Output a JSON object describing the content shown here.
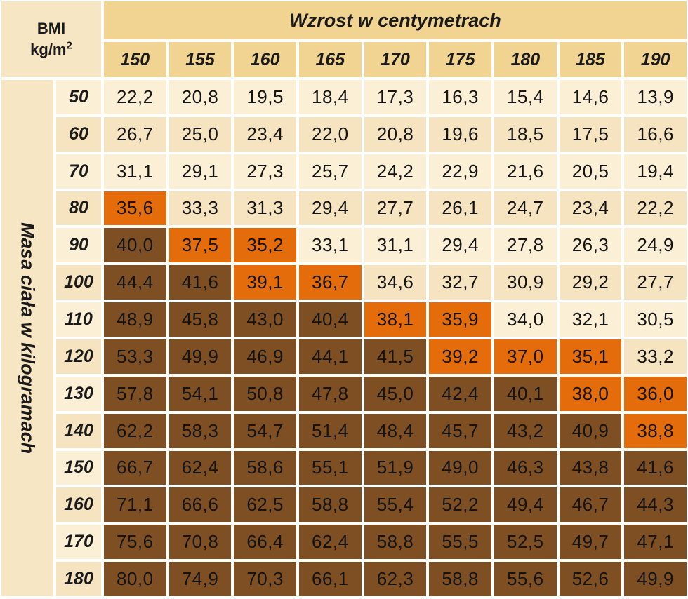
{
  "chart_data": {
    "type": "table",
    "corner_label_line1": "BMI",
    "corner_label_unit": "kg/m",
    "corner_label_exp": "2",
    "column_header_title": "Wzrost w centymetrach",
    "row_header_title": "Masa ciała w kilogramach",
    "columns": [
      "150",
      "155",
      "160",
      "165",
      "170",
      "175",
      "180",
      "185",
      "190"
    ],
    "rows": [
      {
        "label": "50",
        "values": [
          "22,2",
          "20,8",
          "19,5",
          "18,4",
          "17,3",
          "16,3",
          "15,4",
          "14,6",
          "13,9"
        ]
      },
      {
        "label": "60",
        "values": [
          "26,7",
          "25,0",
          "23,4",
          "22,0",
          "20,8",
          "19,6",
          "18,5",
          "17,5",
          "16,6"
        ]
      },
      {
        "label": "70",
        "values": [
          "31,1",
          "29,1",
          "27,3",
          "25,7",
          "24,2",
          "22,9",
          "21,6",
          "20,5",
          "19,4"
        ]
      },
      {
        "label": "80",
        "values": [
          "35,6",
          "33,3",
          "31,3",
          "29,4",
          "27,7",
          "26,1",
          "24,7",
          "23,4",
          "22,2"
        ]
      },
      {
        "label": "90",
        "values": [
          "40,0",
          "37,5",
          "35,2",
          "33,1",
          "31,1",
          "29,4",
          "27,8",
          "26,3",
          "24,9"
        ]
      },
      {
        "label": "100",
        "values": [
          "44,4",
          "41,6",
          "39,1",
          "36,7",
          "34,6",
          "32,7",
          "30,9",
          "29,2",
          "27,7"
        ]
      },
      {
        "label": "110",
        "values": [
          "48,9",
          "45,8",
          "43,0",
          "40,4",
          "38,1",
          "35,9",
          "34,0",
          "32,1",
          "30,5"
        ]
      },
      {
        "label": "120",
        "values": [
          "53,3",
          "49,9",
          "46,9",
          "44,1",
          "41,5",
          "39,2",
          "37,0",
          "35,1",
          "33,2"
        ]
      },
      {
        "label": "130",
        "values": [
          "57,8",
          "54,1",
          "50,8",
          "47,8",
          "45,0",
          "42,4",
          "40,1",
          "38,0",
          "36,0"
        ]
      },
      {
        "label": "140",
        "values": [
          "62,2",
          "58,3",
          "54,7",
          "51,4",
          "48,4",
          "45,7",
          "43,2",
          "40,9",
          "38,8"
        ]
      },
      {
        "label": "150",
        "values": [
          "66,7",
          "62,4",
          "58,6",
          "55,1",
          "51,9",
          "49,0",
          "46,3",
          "43,8",
          "41,6"
        ]
      },
      {
        "label": "160",
        "values": [
          "71,1",
          "66,6",
          "62,5",
          "58,8",
          "55,4",
          "52,2",
          "49,4",
          "46,7",
          "44,3"
        ]
      },
      {
        "label": "170",
        "values": [
          "75,6",
          "70,8",
          "66,4",
          "62,4",
          "58,8",
          "55,5",
          "52,5",
          "49,7",
          "47,1"
        ]
      },
      {
        "label": "180",
        "values": [
          "80,0",
          "74,9",
          "70,3",
          "66,1",
          "62,3",
          "58,8",
          "55,6",
          "52,6",
          "49,9"
        ]
      }
    ],
    "zone_colors": {
      "row_odd": "#fbefd5",
      "row_even": "#f6e3bf",
      "orange": "#e46c0a",
      "brown": "#7f4f24"
    },
    "zone_thresholds": {
      "orange_min": 35,
      "brown_min": 40
    }
  }
}
